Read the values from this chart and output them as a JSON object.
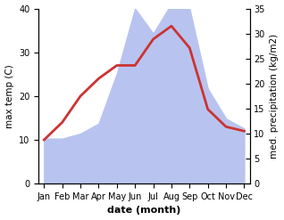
{
  "months": [
    "Jan",
    "Feb",
    "Mar",
    "Apr",
    "May",
    "Jun",
    "Jul",
    "Aug",
    "Sep",
    "Oct",
    "Nov",
    "Dec"
  ],
  "temperature": [
    10,
    14,
    20,
    24,
    27,
    27,
    33,
    36,
    31,
    17,
    13,
    12
  ],
  "precipitation": [
    9,
    9,
    10,
    12,
    22,
    35,
    30,
    36,
    35,
    19,
    13,
    11
  ],
  "temp_color": "#cc3333",
  "precip_color": "#b8c4ef",
  "background_color": "#ffffff",
  "xlabel": "date (month)",
  "ylabel_left": "max temp (C)",
  "ylabel_right": "med. precipitation (kg/m2)",
  "ylim_left": [
    0,
    40
  ],
  "ylim_right": [
    0,
    35
  ],
  "yticks_left": [
    0,
    10,
    20,
    30,
    40
  ],
  "yticks_right": [
    0,
    5,
    10,
    15,
    20,
    25,
    30,
    35
  ],
  "temp_linewidth": 2.0,
  "xlabel_fontsize": 8,
  "ylabel_fontsize": 7.5,
  "tick_fontsize": 7
}
